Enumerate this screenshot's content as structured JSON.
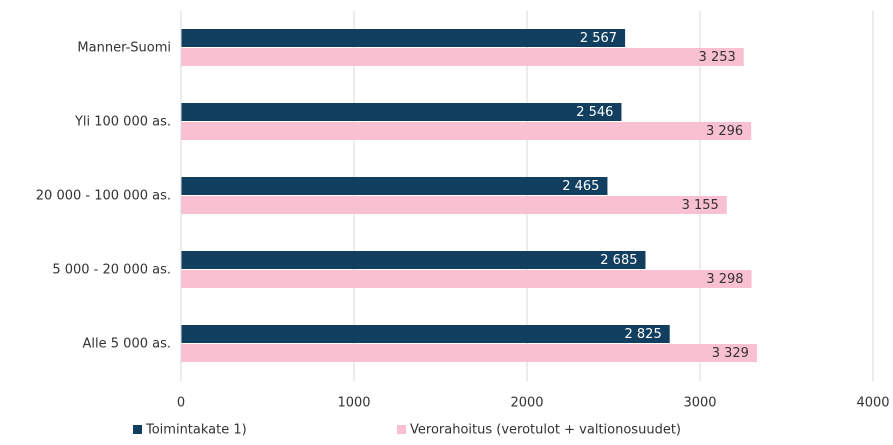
{
  "chart_data": {
    "type": "hbar",
    "categories": [
      "Manner-Suomi",
      "Yli 100 000 as.",
      "20 000 - 100 000 as.",
      "5 000 - 20 000 as.",
      "Alle 5 000 as."
    ],
    "series": [
      {
        "name": "Toimintakate 1)",
        "color": "#123f5f",
        "values": [
          2567,
          2546,
          2465,
          2685,
          2825
        ],
        "value_labels": [
          "2 567",
          "2 546",
          "2 465",
          "2 685",
          "2 825"
        ]
      },
      {
        "name": "Verorahoitus (verotulot + valtionosuudet)",
        "color": "#f8c0d1",
        "values": [
          3253,
          3296,
          3155,
          3298,
          3329
        ],
        "value_labels": [
          "3 253",
          "3 296",
          "3 155",
          "3 298",
          "3 329"
        ]
      }
    ],
    "xlim": [
      0,
      4000
    ],
    "xticks": [
      0,
      1000,
      2000,
      3000,
      4000
    ],
    "grid": true
  }
}
